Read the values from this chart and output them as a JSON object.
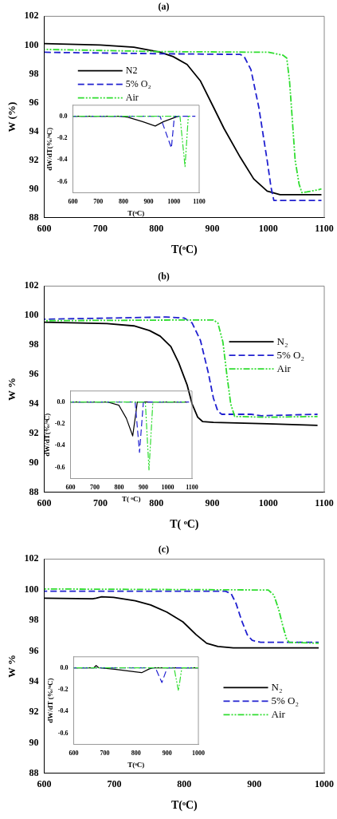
{
  "chart_data": [
    {
      "type": "line",
      "title": "(a)",
      "xlabel": "T(ᵒC)",
      "ylabel": "W (%)",
      "xlim": [
        600,
        1100
      ],
      "xticks": [
        600,
        700,
        800,
        900,
        1000,
        1100
      ],
      "ylim": [
        88,
        102
      ],
      "yticks": [
        88,
        90,
        92,
        94,
        96,
        98,
        100,
        102
      ],
      "legend": "left",
      "series": [
        {
          "name": "N2",
          "color": "#000000",
          "line_style": "solid",
          "x": [
            600,
            700,
            760,
            807,
            830,
            855,
            879,
            902,
            921,
            950,
            974,
            998,
            1021,
            1095
          ],
          "values": [
            100.1,
            100.0,
            99.85,
            99.5,
            99.2,
            98.65,
            97.5,
            95.7,
            94.2,
            92.2,
            90.7,
            89.85,
            89.6,
            89.6
          ]
        },
        {
          "name": "5% O₂",
          "color": "#2020d0",
          "line_style": "dashed",
          "x": [
            600,
            800,
            950,
            957,
            969,
            983,
            998,
            1005,
            1010,
            1095
          ],
          "values": [
            99.5,
            99.4,
            99.35,
            99.2,
            98.3,
            95.7,
            92.0,
            90.1,
            89.2,
            89.2
          ]
        },
        {
          "name": "Air",
          "color": "#30dd30",
          "line_style": "dotted",
          "x": [
            600,
            800,
            1000,
            1026,
            1033,
            1038,
            1043,
            1048,
            1055,
            1060,
            1069,
            1090,
            1095
          ],
          "values": [
            99.7,
            99.55,
            99.5,
            99.3,
            99.1,
            97.5,
            94.8,
            92.0,
            90.35,
            89.75,
            89.8,
            89.95,
            90.0
          ]
        }
      ]
    },
    {
      "type": "line",
      "xlabel": "T(ᵒC)",
      "ylabel": "dW/dT(%/ᵒC)",
      "xlim": [
        600,
        1100
      ],
      "xticks": [
        600,
        700,
        800,
        900,
        1000,
        1100
      ],
      "ylim": [
        -0.7,
        0.1
      ],
      "yticks": [
        {
          "value": 0,
          "label": "0.0"
        },
        {
          "value": -0.2,
          "label": "-0.2"
        },
        {
          "value": -0.4,
          "label": "-0.4"
        },
        {
          "value": -0.6,
          "label": "-0.6"
        }
      ],
      "series": [
        {
          "color": "#000000",
          "line_style": "solid",
          "x": [
            600,
            780,
            818,
            876,
            926,
            959,
            1006,
            1020
          ],
          "values": [
            0,
            0,
            -0.01,
            -0.05,
            -0.09,
            -0.05,
            -0.01,
            0
          ]
        },
        {
          "color": "#2020d0",
          "line_style": "dashed",
          "x": [
            600,
            945,
            990,
            1002,
            1085
          ],
          "values": [
            0,
            0,
            -0.29,
            0,
            0
          ]
        },
        {
          "color": "#30dd30",
          "line_style": "dotted",
          "x": [
            600,
            1024,
            1044,
            1057,
            1065
          ],
          "values": [
            0,
            0,
            -0.46,
            0,
            0
          ]
        }
      ]
    },
    {
      "type": "line",
      "title": "(b)",
      "xlabel": "T( ᵒC)",
      "ylabel": "W %",
      "xlim": [
        600,
        1100
      ],
      "xticks": [
        600,
        700,
        800,
        900,
        1000,
        1100
      ],
      "ylim": [
        88,
        102
      ],
      "yticks": [
        88,
        90,
        92,
        94,
        96,
        98,
        100,
        102
      ],
      "legend": "right",
      "series": [
        {
          "name": "N₂",
          "color": "#000000",
          "line_style": "solid",
          "x": [
            600,
            712,
            760,
            788,
            807,
            826,
            840,
            855,
            864,
            874,
            883,
            902,
            998,
            1088
          ],
          "values": [
            99.55,
            99.46,
            99.3,
            98.98,
            98.6,
            97.9,
            96.8,
            95.3,
            94.0,
            93.1,
            92.8,
            92.75,
            92.65,
            92.55
          ]
        },
        {
          "name": "5% O₂",
          "color": "#2020d0",
          "line_style": "dashed",
          "x": [
            600,
            817,
            850,
            864,
            879,
            893,
            902,
            910,
            917,
            969,
            988,
            1088
          ],
          "values": [
            99.75,
            99.9,
            99.83,
            99.5,
            98.3,
            96.1,
            94.4,
            93.5,
            93.3,
            93.3,
            93.2,
            93.3
          ]
        },
        {
          "name": "Air",
          "color": "#30dd30",
          "line_style": "dotted",
          "x": [
            600,
            855,
            902,
            910,
            919,
            926,
            933,
            940,
            998,
            1088
          ],
          "values": [
            99.65,
            99.7,
            99.7,
            99.5,
            98.2,
            96.0,
            94.0,
            93.15,
            93.1,
            93.15
          ]
        }
      ]
    },
    {
      "type": "line",
      "xlabel": "T( ᵒC)",
      "ylabel": "dW/dT(%/ᵒC)",
      "xlim": [
        600,
        1100
      ],
      "xticks": [
        600,
        700,
        800,
        900,
        1000,
        1100
      ],
      "ylim": [
        -0.7,
        0.1
      ],
      "yticks": [
        {
          "value": 0,
          "label": "0.0"
        },
        {
          "value": -0.2,
          "label": "-0.2"
        },
        {
          "value": -0.4,
          "label": "-0.4"
        },
        {
          "value": -0.6,
          "label": "-0.6"
        }
      ],
      "series": [
        {
          "color": "#000000",
          "line_style": "solid",
          "x": [
            600,
            751,
            799,
            830,
            848,
            856,
            866,
            875,
            1080
          ],
          "values": [
            0,
            0,
            -0.03,
            -0.15,
            -0.26,
            -0.31,
            -0.15,
            0,
            0
          ]
        },
        {
          "color": "#2020d0",
          "line_style": "dashed",
          "x": [
            600,
            866,
            884,
            900,
            1088
          ],
          "values": [
            0,
            0,
            -0.46,
            0,
            0
          ]
        },
        {
          "color": "#30dd30",
          "line_style": "dotted",
          "x": [
            600,
            908,
            923,
            939,
            1070
          ],
          "values": [
            0,
            0,
            -0.62,
            0,
            0
          ]
        }
      ]
    },
    {
      "type": "line",
      "title": "(c)",
      "xlabel": "T(ᵒC)",
      "ylabel": "W %",
      "xlim": [
        600,
        1000
      ],
      "xticks": [
        600,
        700,
        800,
        900,
        1000
      ],
      "ylim": [
        88,
        102
      ],
      "yticks": [
        88,
        90,
        92,
        94,
        96,
        98,
        100,
        102
      ],
      "legend": "bottom right",
      "series": [
        {
          "name": "N₂",
          "color": "#000000",
          "line_style": "solid",
          "x": [
            600,
            669,
            674,
            682,
            699,
            730,
            752,
            775,
            798,
            817,
            832,
            848,
            870,
            920,
            992
          ],
          "values": [
            99.45,
            99.41,
            99.45,
            99.54,
            99.5,
            99.28,
            99.0,
            98.54,
            97.9,
            97.06,
            96.5,
            96.29,
            96.2,
            96.2,
            96.2
          ]
        },
        {
          "name": "5% O₂",
          "color": "#2020d0",
          "line_style": "dashed",
          "x": [
            600,
            859,
            867,
            874,
            882,
            890,
            897,
            909,
            992
          ],
          "values": [
            99.9,
            99.9,
            99.74,
            99.1,
            97.98,
            97.06,
            96.69,
            96.56,
            96.56
          ]
        },
        {
          "name": "Air",
          "color": "#30dd30",
          "line_style": "dotted",
          "x": [
            600,
            920,
            928,
            935,
            941,
            946,
            950,
            992
          ],
          "values": [
            100.05,
            99.98,
            99.65,
            98.7,
            97.6,
            96.8,
            96.56,
            96.5
          ]
        }
      ]
    },
    {
      "type": "line",
      "xlabel": "T(ᵒC)",
      "ylabel": "dW/dT (%/ᵒC)",
      "xlim": [
        600,
        1000
      ],
      "xticks": [
        600,
        700,
        800,
        900,
        1000
      ],
      "ylim": [
        -0.7,
        0.1
      ],
      "yticks": [
        {
          "value": 0,
          "label": "0.0"
        },
        {
          "value": -0.2,
          "label": "-0.2"
        },
        {
          "value": -0.4,
          "label": "-0.4"
        },
        {
          "value": -0.6,
          "label": "-0.6"
        }
      ],
      "series": [
        {
          "color": "#000000",
          "line_style": "solid",
          "x": [
            600,
            665,
            672,
            680,
            731,
            777,
            818,
            843,
            857,
            1000
          ],
          "values": [
            0,
            0,
            0.02,
            0,
            -0.013,
            -0.03,
            -0.045,
            -0.01,
            0,
            0
          ]
        },
        {
          "color": "#2020d0",
          "line_style": "dashed",
          "x": [
            600,
            862,
            883,
            900,
            1000
          ],
          "values": [
            0,
            0,
            -0.135,
            0,
            0
          ]
        },
        {
          "color": "#30dd30",
          "line_style": "dotted",
          "x": [
            600,
            922,
            936,
            947,
            1000
          ],
          "values": [
            0,
            0,
            -0.21,
            0,
            0
          ]
        }
      ]
    }
  ]
}
